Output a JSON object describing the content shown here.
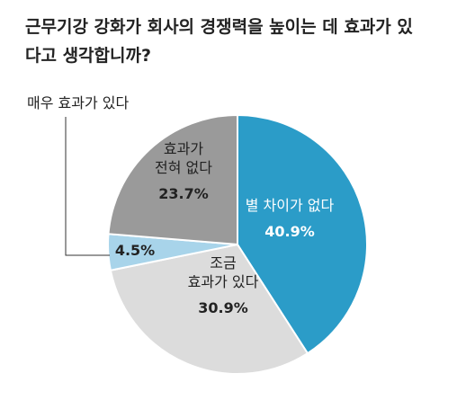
{
  "title_lines": [
    "근무기강 강화가 회사의 경쟁력을 높이는 데 효과가 있",
    "다고 생각합니까?"
  ],
  "chart_data": {
    "type": "pie",
    "slices": [
      {
        "label_lines": [
          "별 차이가 없다"
        ],
        "value": 40.9,
        "value_label": "40.9%",
        "color": "#2b9cc8",
        "text_color": "#ffffff"
      },
      {
        "label_lines": [
          "조금",
          "효과가 있다"
        ],
        "value": 30.9,
        "value_label": "30.9%",
        "color": "#dcdcdc",
        "text_color": "#222222"
      },
      {
        "label_lines": [],
        "value": 4.5,
        "value_label": "4.5%",
        "color": "#a8d4ea",
        "text_color": "#222222"
      },
      {
        "label_lines": [
          "효과가",
          "전혀 없다"
        ],
        "value": 23.7,
        "value_label": "23.7%",
        "color": "#9a9a9a",
        "text_color": "#222222"
      }
    ],
    "callout": {
      "text": "매우 효과가 있다",
      "slice_index": 2
    }
  }
}
